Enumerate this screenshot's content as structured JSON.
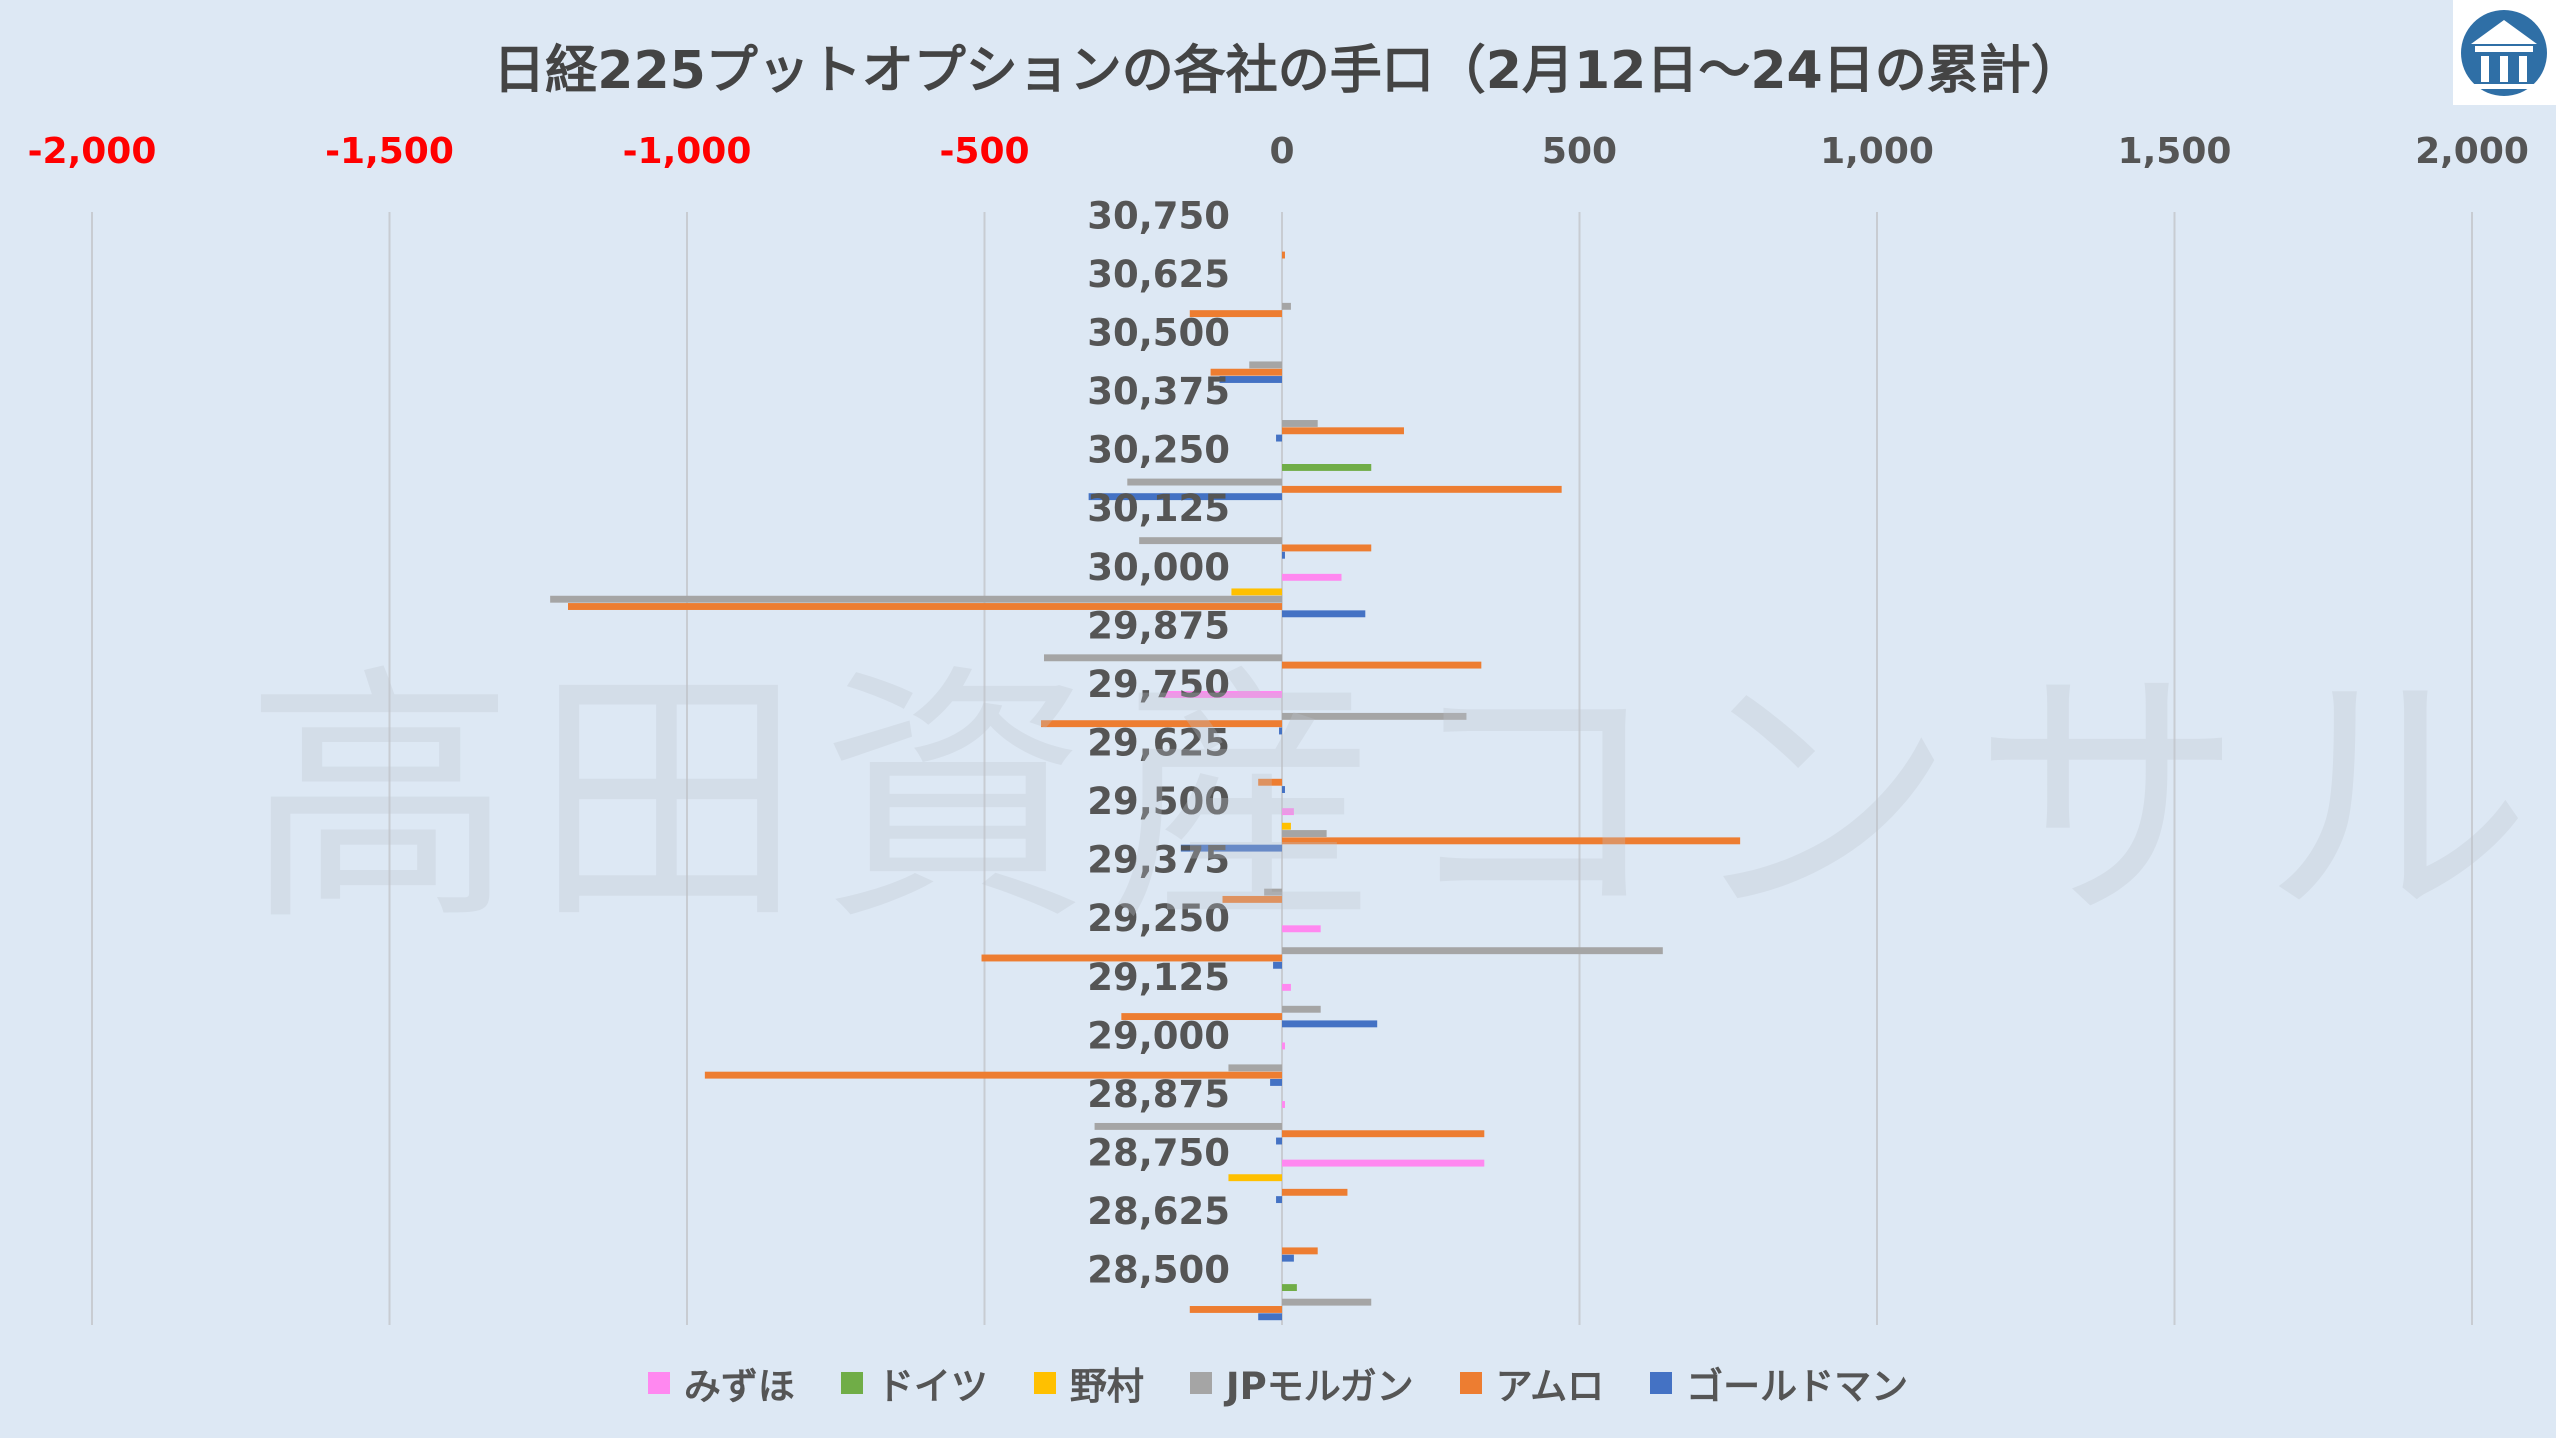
{
  "watermark": "高田資産コンサル",
  "chart_data": {
    "type": "bar",
    "orientation": "horizontal",
    "title": "日経225プットオプションの各社の手口（2月12日～24日の累計）",
    "x_ticks": [
      "-2,000",
      "-1,500",
      "-1,000",
      "-500",
      "0",
      "500",
      "1,000",
      "1,500",
      "2,000"
    ],
    "xlim": [
      -2000,
      2000
    ],
    "negative_tick_color": "#ff0000",
    "grid": "vertical",
    "legend_position": "bottom",
    "categories": [
      "30,750",
      "30,625",
      "30,500",
      "30,375",
      "30,250",
      "30,125",
      "30,000",
      "29,875",
      "29,750",
      "29,625",
      "29,500",
      "29,375",
      "29,250",
      "29,125",
      "29,000",
      "28,875",
      "28,750",
      "28,625",
      "28,500"
    ],
    "series": [
      {
        "name": "みずほ",
        "color": "#ff88f0",
        "values": [
          0,
          0,
          0,
          0,
          0,
          0,
          100,
          0,
          -200,
          0,
          20,
          0,
          65,
          15,
          5,
          5,
          340,
          0,
          0
        ]
      },
      {
        "name": "ドイツ",
        "color": "#70ad47",
        "values": [
          0,
          0,
          0,
          0,
          150,
          0,
          0,
          0,
          0,
          0,
          0,
          0,
          0,
          0,
          0,
          0,
          0,
          0,
          25
        ]
      },
      {
        "name": "野村",
        "color": "#ffc000",
        "values": [
          0,
          0,
          0,
          0,
          0,
          0,
          -85,
          0,
          0,
          0,
          15,
          0,
          0,
          0,
          0,
          0,
          -90,
          0,
          0
        ]
      },
      {
        "name": "JPモルガン",
        "color": "#a5a5a5",
        "values": [
          0,
          15,
          -55,
          60,
          -260,
          -240,
          -1230,
          -400,
          310,
          0,
          75,
          -30,
          640,
          65,
          -90,
          -315,
          0,
          0,
          150
        ]
      },
      {
        "name": "アムロ",
        "color": "#ed7d31",
        "values": [
          5,
          -155,
          -120,
          205,
          470,
          150,
          -1200,
          335,
          -405,
          -40,
          770,
          -100,
          -505,
          -270,
          -970,
          340,
          110,
          60,
          -155
        ]
      },
      {
        "name": "ゴールドマン",
        "color": "#4472c4",
        "values": [
          0,
          0,
          -105,
          -10,
          -325,
          5,
          140,
          0,
          -5,
          5,
          -170,
          0,
          -15,
          160,
          -20,
          -10,
          -10,
          20,
          -40
        ]
      }
    ]
  }
}
